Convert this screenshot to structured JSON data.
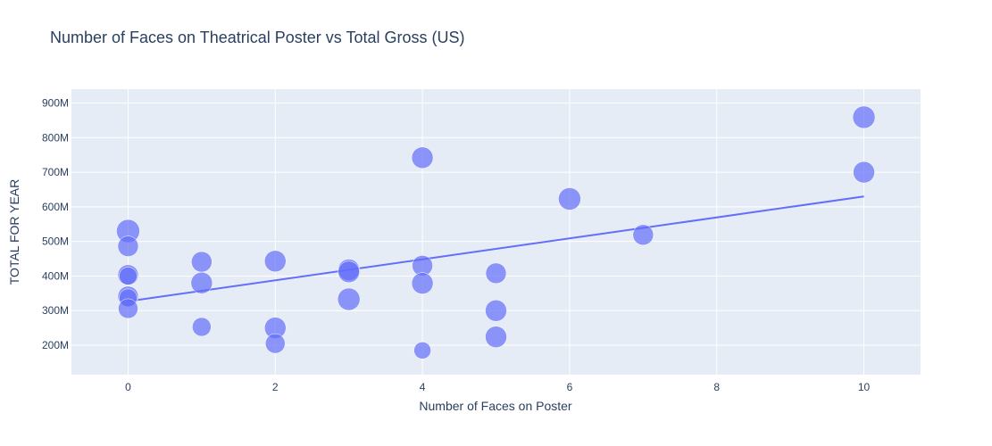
{
  "chart_data": {
    "type": "scatter",
    "title": "Number of Faces on Theatrical Poster vs Total Gross (US)",
    "xlabel": "Number of Faces on Poster",
    "ylabel": "TOTAL FOR YEAR",
    "xlim": [
      -0.77,
      10.77
    ],
    "ylim": [
      115000000,
      940000000
    ],
    "x_ticks": [
      0,
      2,
      4,
      6,
      8,
      10
    ],
    "x_tick_labels": [
      "0",
      "2",
      "4",
      "6",
      "8",
      "10"
    ],
    "y_ticks": [
      200000000,
      300000000,
      400000000,
      500000000,
      600000000,
      700000000,
      800000000,
      900000000
    ],
    "y_tick_labels": [
      "200M",
      "300M",
      "400M",
      "500M",
      "600M",
      "700M",
      "800M",
      "900M"
    ],
    "grid": true,
    "marker_color": "#636efa",
    "plot_bg": "#e5ecf6",
    "points": [
      {
        "x": 0,
        "y": 530000000,
        "size": 13
      },
      {
        "x": 0,
        "y": 486000000,
        "size": 11.5
      },
      {
        "x": 0,
        "y": 403000000,
        "size": 11.5
      },
      {
        "x": 0,
        "y": 400000000,
        "size": 10
      },
      {
        "x": 0,
        "y": 341000000,
        "size": 11.5
      },
      {
        "x": 0,
        "y": 337000000,
        "size": 10
      },
      {
        "x": 0,
        "y": 306000000,
        "size": 11
      },
      {
        "x": 1,
        "y": 441000000,
        "size": 11.5
      },
      {
        "x": 1,
        "y": 380000000,
        "size": 12
      },
      {
        "x": 1,
        "y": 253000000,
        "size": 10.5
      },
      {
        "x": 2,
        "y": 443000000,
        "size": 12
      },
      {
        "x": 2,
        "y": 250000000,
        "size": 12
      },
      {
        "x": 2,
        "y": 205000000,
        "size": 11
      },
      {
        "x": 3,
        "y": 418000000,
        "size": 12
      },
      {
        "x": 3,
        "y": 412000000,
        "size": 12
      },
      {
        "x": 3,
        "y": 333000000,
        "size": 12.5
      },
      {
        "x": 4,
        "y": 742000000,
        "size": 12
      },
      {
        "x": 4,
        "y": 430000000,
        "size": 11.5
      },
      {
        "x": 4,
        "y": 379000000,
        "size": 12
      },
      {
        "x": 4,
        "y": 185000000,
        "size": 9.5
      },
      {
        "x": 5,
        "y": 408000000,
        "size": 11.5
      },
      {
        "x": 5,
        "y": 300000000,
        "size": 12
      },
      {
        "x": 5,
        "y": 224000000,
        "size": 12
      },
      {
        "x": 6,
        "y": 623000000,
        "size": 12.5
      },
      {
        "x": 7,
        "y": 519000000,
        "size": 11.5
      },
      {
        "x": 10,
        "y": 859000000,
        "size": 12.5
      },
      {
        "x": 10,
        "y": 700000000,
        "size": 12
      }
    ],
    "trendline": [
      {
        "x": 0,
        "y": 327000000
      },
      {
        "x": 10,
        "y": 630000000
      }
    ]
  }
}
